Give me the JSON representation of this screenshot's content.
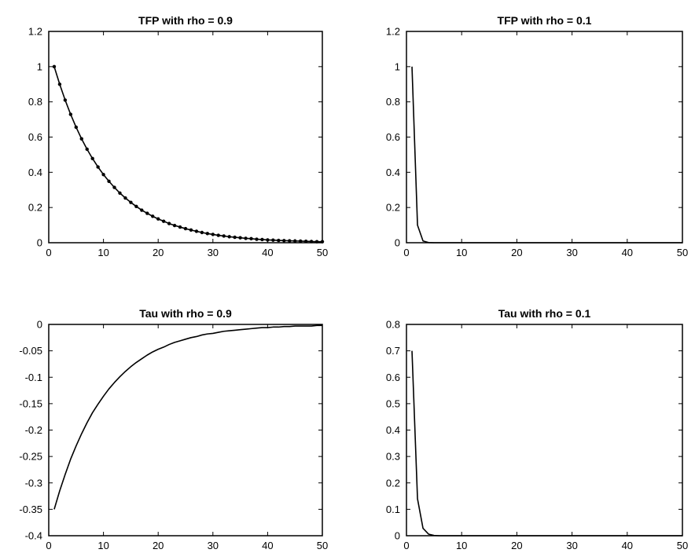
{
  "chart_data": [
    {
      "type": "line",
      "title": "TFP with rho = 0.9",
      "xlim": [
        0,
        50
      ],
      "ylim": [
        0,
        1.2
      ],
      "xticks": [
        "0",
        "10",
        "20",
        "30",
        "40",
        "50"
      ],
      "yticks": [
        "0",
        "0.2",
        "0.4",
        "0.6",
        "0.8",
        "1",
        "1.2"
      ],
      "markers": true,
      "series": [
        {
          "x": [
            1,
            2,
            3,
            4,
            5,
            6,
            7,
            8,
            9,
            10,
            11,
            12,
            13,
            14,
            15,
            16,
            17,
            18,
            19,
            20,
            21,
            22,
            23,
            24,
            25,
            26,
            27,
            28,
            29,
            30,
            31,
            32,
            33,
            34,
            35,
            36,
            37,
            38,
            39,
            40,
            41,
            42,
            43,
            44,
            45,
            46,
            47,
            48,
            49,
            50
          ],
          "values": [
            1,
            0.9,
            0.81,
            0.729,
            0.656,
            0.59,
            0.531,
            0.478,
            0.43,
            0.387,
            0.349,
            0.314,
            0.282,
            0.254,
            0.229,
            0.206,
            0.185,
            0.167,
            0.15,
            0.135,
            0.122,
            0.109,
            0.098,
            0.089,
            0.08,
            0.072,
            0.065,
            0.058,
            0.052,
            0.047,
            0.042,
            0.038,
            0.034,
            0.031,
            0.028,
            0.025,
            0.023,
            0.02,
            0.018,
            0.016,
            0.015,
            0.013,
            0.012,
            0.011,
            0.01,
            0.009,
            0.008,
            0.007,
            0.006,
            0.006
          ]
        }
      ]
    },
    {
      "type": "line",
      "title": "TFP with rho = 0.1",
      "xlim": [
        0,
        50
      ],
      "ylim": [
        0,
        1.2
      ],
      "xticks": [
        "0",
        "10",
        "20",
        "30",
        "40",
        "50"
      ],
      "yticks": [
        "0",
        "0.2",
        "0.4",
        "0.6",
        "0.8",
        "1",
        "1.2"
      ],
      "markers": false,
      "series": [
        {
          "x": [
            1,
            2,
            3,
            4,
            5,
            6,
            7,
            8,
            9,
            10,
            11,
            12,
            13,
            14,
            15,
            16,
            17,
            18,
            19,
            20,
            21,
            22,
            23,
            24,
            25,
            26,
            27,
            28,
            29,
            30,
            31,
            32,
            33,
            34,
            35,
            36,
            37,
            38,
            39,
            40,
            41,
            42,
            43,
            44,
            45,
            46,
            47,
            48,
            49,
            50
          ],
          "values": [
            1,
            0.1,
            0.01,
            0.001,
            0,
            0,
            0,
            0,
            0,
            0,
            0,
            0,
            0,
            0,
            0,
            0,
            0,
            0,
            0,
            0,
            0,
            0,
            0,
            0,
            0,
            0,
            0,
            0,
            0,
            0,
            0,
            0,
            0,
            0,
            0,
            0,
            0,
            0,
            0,
            0,
            0,
            0,
            0,
            0,
            0,
            0,
            0,
            0,
            0,
            0
          ]
        }
      ]
    },
    {
      "type": "line",
      "title": "Tau with rho = 0.9",
      "xlim": [
        0,
        50
      ],
      "ylim": [
        -0.4,
        0
      ],
      "xticks": [
        "0",
        "10",
        "20",
        "30",
        "40",
        "50"
      ],
      "yticks": [
        "-0.4",
        "-0.35",
        "-0.3",
        "-0.25",
        "-0.2",
        "-0.15",
        "-0.1",
        "-0.05",
        "0"
      ],
      "markers": false,
      "series": [
        {
          "x": [
            1,
            2,
            3,
            4,
            5,
            6,
            7,
            8,
            9,
            10,
            11,
            12,
            13,
            14,
            15,
            16,
            17,
            18,
            19,
            20,
            21,
            22,
            23,
            24,
            25,
            26,
            27,
            28,
            29,
            30,
            31,
            32,
            33,
            34,
            35,
            36,
            37,
            38,
            39,
            40,
            41,
            42,
            43,
            44,
            45,
            46,
            47,
            48,
            49,
            50
          ],
          "values": [
            -0.35,
            -0.315,
            -0.284,
            -0.255,
            -0.23,
            -0.207,
            -0.186,
            -0.167,
            -0.151,
            -0.136,
            -0.122,
            -0.11,
            -0.099,
            -0.089,
            -0.08,
            -0.072,
            -0.065,
            -0.058,
            -0.052,
            -0.047,
            -0.043,
            -0.038,
            -0.034,
            -0.031,
            -0.028,
            -0.025,
            -0.023,
            -0.02,
            -0.018,
            -0.017,
            -0.015,
            -0.013,
            -0.012,
            -0.011,
            -0.01,
            -0.009,
            -0.008,
            -0.007,
            -0.006,
            -0.006,
            -0.005,
            -0.005,
            -0.004,
            -0.004,
            -0.003,
            -0.003,
            -0.003,
            -0.003,
            -0.002,
            -0.002
          ]
        }
      ]
    },
    {
      "type": "line",
      "title": "Tau with rho = 0.1",
      "xlim": [
        0,
        50
      ],
      "ylim": [
        0,
        0.8
      ],
      "xticks": [
        "0",
        "10",
        "20",
        "30",
        "40",
        "50"
      ],
      "yticks": [
        "0",
        "0.1",
        "0.2",
        "0.3",
        "0.4",
        "0.5",
        "0.6",
        "0.7",
        "0.8"
      ],
      "markers": false,
      "series": [
        {
          "x": [
            1,
            2,
            3,
            4,
            5,
            6,
            7,
            8,
            9,
            10,
            11,
            12,
            13,
            14,
            15,
            16,
            17,
            18,
            19,
            20,
            21,
            22,
            23,
            24,
            25,
            26,
            27,
            28,
            29,
            30,
            31,
            32,
            33,
            34,
            35,
            36,
            37,
            38,
            39,
            40,
            41,
            42,
            43,
            44,
            45,
            46,
            47,
            48,
            49,
            50
          ],
          "values": [
            0.7,
            0.14,
            0.028,
            0.006,
            0.001,
            0,
            0,
            0,
            0,
            0,
            0,
            0,
            0,
            0,
            0,
            0,
            0,
            0,
            0,
            0,
            0,
            0,
            0,
            0,
            0,
            0,
            0,
            0,
            0,
            0,
            0,
            0,
            0,
            0,
            0,
            0,
            0,
            0,
            0,
            0,
            0,
            0,
            0,
            0,
            0,
            0,
            0,
            0,
            0,
            0
          ]
        }
      ]
    }
  ],
  "colors": {
    "line": "#000000",
    "axes": "#000000",
    "background": "#ffffff"
  }
}
